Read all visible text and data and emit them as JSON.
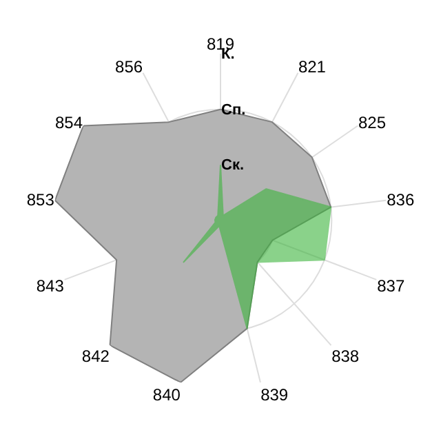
{
  "chart_data": {
    "type": "radar",
    "categories": [
      "819",
      "821",
      "825",
      "836",
      "837",
      "838",
      "839",
      "840",
      "842",
      "843",
      "853",
      "854",
      "856"
    ],
    "series": [
      {
        "color": "#b4b4b4",
        "values": [
          2,
          2,
          2,
          2,
          1,
          1,
          2,
          3,
          3,
          2,
          3,
          3,
          2
        ]
      },
      {
        "color": "#3cb43c",
        "values": [
          1,
          0.1,
          1,
          2,
          2,
          1,
          2,
          0.1,
          1,
          0.1,
          0.1,
          0.1,
          0.1
        ]
      }
    ],
    "ylim": [
      0,
      3
    ],
    "yticks": [
      {
        "value": 1,
        "label": "Ск."
      },
      {
        "value": 2,
        "label": "Сп."
      },
      {
        "value": 3,
        "label": "К."
      }
    ],
    "grid": true
  }
}
